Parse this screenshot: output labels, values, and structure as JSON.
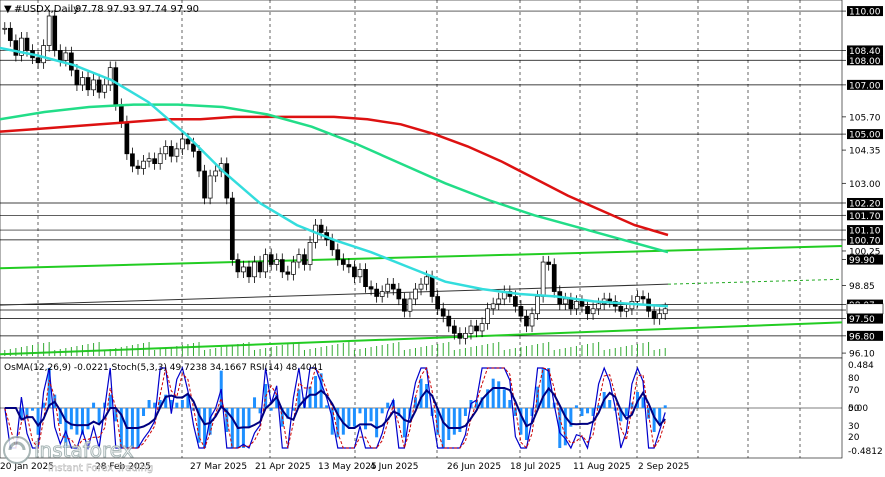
{
  "header": {
    "symbol": "#USDX,Daily",
    "ohlc": "97.78 97.93 97.74 97.90"
  },
  "oscillator": {
    "caption": "OsMA(12,26,9) -0.0221  Stoch(5,3,3) 49.7238 34.1667  RSI(14) 48.4041"
  },
  "colors": {
    "ma_red": "#dd1111",
    "ma_green": "#22dd88",
    "ma_cyan": "#33dddd",
    "trend_green": "#22cc22",
    "candle": "#000000",
    "osma": "#1e90ff",
    "stoch_main": "#0000cc",
    "stoch_signal": "#cc0000",
    "rsi": "#000080"
  },
  "chart_data": {
    "type": "line",
    "price_axis_ticks": [
      "110.00",
      "108.40",
      "108.00",
      "107.00",
      "105.70",
      "105.00",
      "104.35",
      "103.00",
      "102.20",
      "101.70",
      "101.10",
      "100.70",
      "100.25",
      "99.90",
      "98.85",
      "98.07",
      "97.85",
      "97.50",
      "96.80",
      "96.10"
    ],
    "boxed_levels": [
      "110.00",
      "108.40",
      "108.00",
      "107.00",
      "105.00",
      "102.20",
      "101.70",
      "101.10",
      "100.70",
      "99.90",
      "98.07",
      "97.85",
      "97.50",
      "96.80"
    ],
    "horizontal_levels": [
      110.0,
      108.4,
      108.0,
      107.0,
      105.0,
      102.2,
      101.7,
      101.1,
      100.7,
      98.07,
      97.85,
      97.5,
      96.8
    ],
    "ylim": [
      95.9,
      110.45
    ],
    "time_labels": [
      "20 Jan 2025",
      "28 Feb 2025",
      "27 Mar 2025",
      "21 Apr 2025",
      "13 May 2025",
      "4 Jun 2025",
      "26 Jun 2025",
      "18 Jul 2025",
      "11 Aug 2025",
      "2 Sep 2025"
    ],
    "series": [
      {
        "name": "close",
        "values": [
          109.3,
          108.8,
          108.2,
          108.9,
          108.4,
          108.1,
          107.9,
          108.6,
          109.8,
          108.4,
          108.0,
          108.3,
          107.6,
          107.0,
          107.3,
          106.8,
          107.2,
          106.7,
          107.0,
          107.7,
          106.2,
          105.5,
          104.2,
          103.7,
          103.6,
          103.9,
          104.0,
          103.8,
          104.2,
          104.5,
          104.1,
          104.4,
          104.8,
          104.6,
          104.3,
          103.5,
          102.4,
          103.3,
          103.5,
          103.8,
          102.4,
          99.9,
          99.4,
          99.6,
          99.2,
          99.8,
          99.4,
          100.1,
          99.7,
          99.9,
          99.4,
          99.3,
          99.8,
          100.1,
          99.7,
          100.6,
          101.3,
          101.0,
          100.7,
          100.3,
          99.9,
          99.7,
          99.6,
          99.2,
          99.5,
          98.8,
          98.7,
          98.4,
          98.6,
          98.9,
          98.7,
          98.3,
          97.8,
          98.3,
          98.7,
          98.9,
          99.2,
          98.4,
          97.9,
          97.6,
          97.2,
          96.9,
          96.7,
          96.9,
          97.2,
          97.0,
          97.3,
          97.9,
          98.1,
          98.3,
          98.6,
          98.4,
          98.0,
          97.6,
          97.2,
          97.7,
          98.4,
          99.8,
          99.7,
          98.6,
          98.1,
          98.3,
          97.9,
          98.2,
          98.0,
          97.7,
          97.9,
          98.1,
          98.3,
          98.2,
          98.0,
          97.8,
          97.9,
          98.2,
          98.4,
          98.3,
          97.8,
          97.5,
          97.7,
          97.9
        ]
      },
      {
        "name": "ma_red",
        "values": [
          105.1,
          105.2,
          105.3,
          105.4,
          105.5,
          105.6,
          105.6,
          105.7,
          105.7,
          105.7,
          105.7,
          105.6,
          105.4,
          105.0,
          104.5,
          103.9,
          103.2,
          102.5,
          101.9,
          101.3,
          100.9
        ]
      },
      {
        "name": "ma_green",
        "values": [
          105.6,
          105.9,
          106.1,
          106.2,
          106.2,
          106.1,
          105.8,
          105.3,
          104.6,
          103.8,
          103.0,
          102.3,
          101.7,
          101.2,
          100.7,
          100.2
        ]
      },
      {
        "name": "ma_cyan",
        "values": [
          108.5,
          108.2,
          107.8,
          107.2,
          106.3,
          105.0,
          103.5,
          102.2,
          101.3,
          100.7,
          100.2,
          99.6,
          99.0,
          98.7,
          98.5,
          98.4,
          98.2,
          98.1,
          98.0
        ]
      }
    ]
  }
}
